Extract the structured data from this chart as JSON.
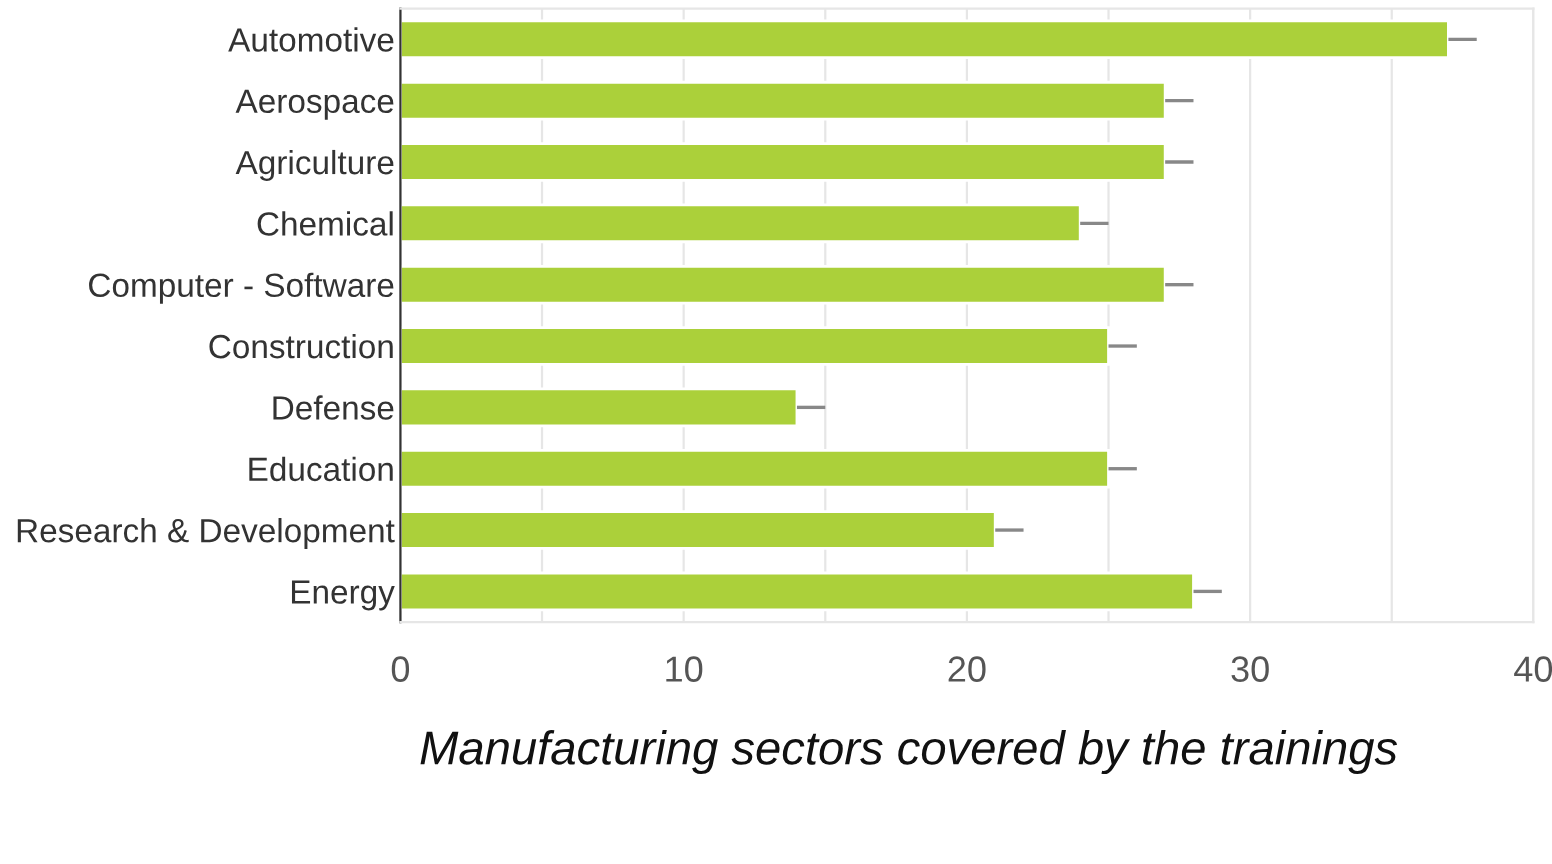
{
  "chart_data": {
    "type": "bar",
    "orientation": "horizontal",
    "categories": [
      "Automotive",
      "Aerospace",
      "Agriculture",
      "Chemical",
      "Computer - Software",
      "Construction",
      "Defense",
      "Education",
      "Research & Development",
      "Energy"
    ],
    "values": [
      37,
      27,
      27,
      24,
      27,
      25,
      14,
      25,
      21,
      28
    ],
    "errors": [
      [
        37,
        38
      ],
      [
        27,
        28
      ],
      [
        27,
        28
      ],
      [
        24,
        25
      ],
      [
        27,
        28
      ],
      [
        25,
        26
      ],
      [
        14,
        15
      ],
      [
        25,
        26
      ],
      [
        21,
        22
      ],
      [
        28,
        29
      ]
    ],
    "color": "#abd03a",
    "xlim": [
      0,
      40
    ],
    "xticks": [
      0,
      {
        "value": 5,
        "label": null
      },
      10,
      {
        "value": 15,
        "label": null
      },
      20,
      {
        "value": 25,
        "label": null
      },
      30,
      {
        "value": 35,
        "label": null
      },
      40
    ],
    "grid": "x",
    "annotations": [
      "Manufacturing sectors covered by the trainings"
    ]
  }
}
